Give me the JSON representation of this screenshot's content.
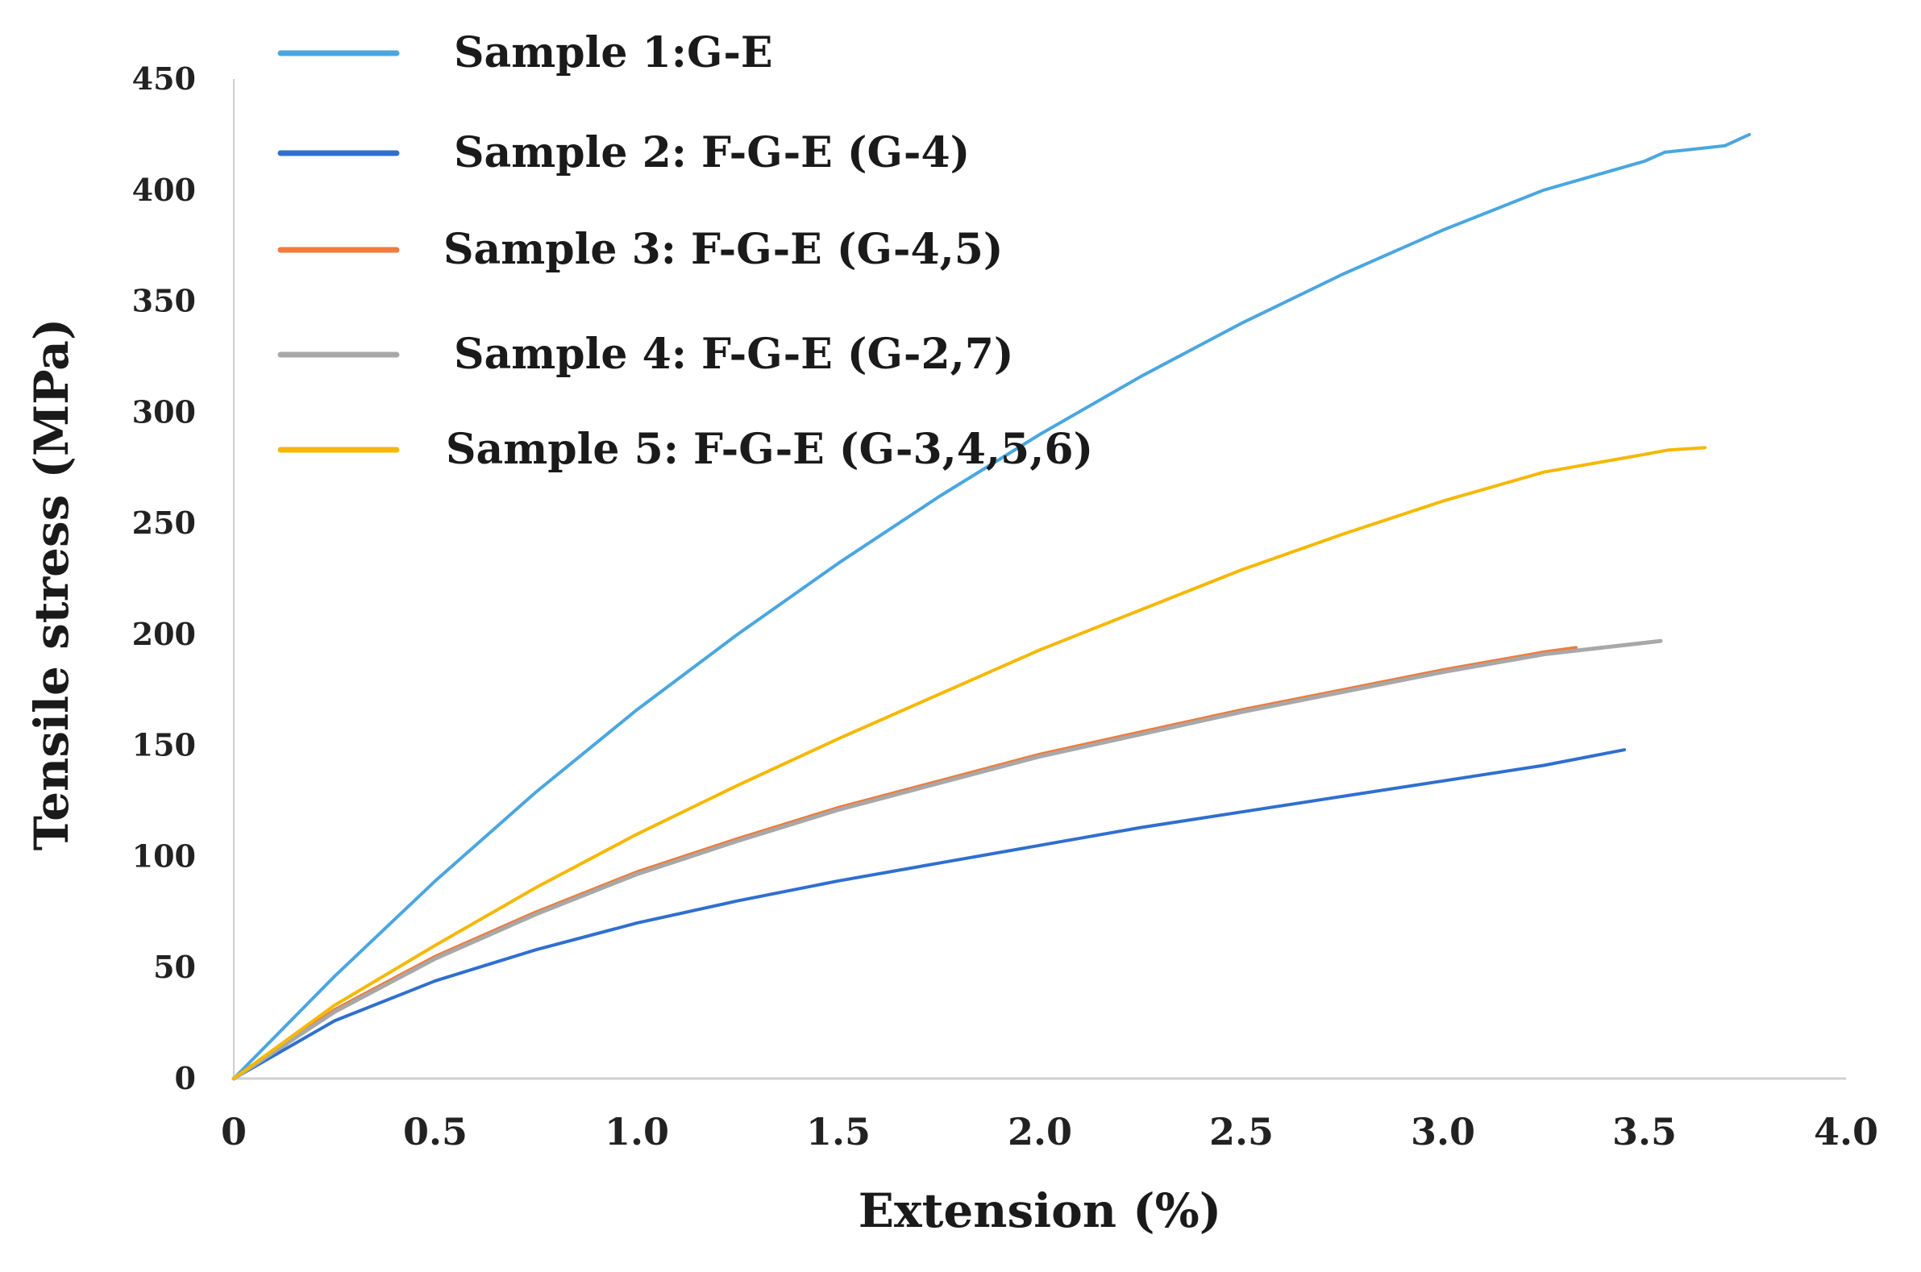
{
  "chart_data": {
    "type": "line",
    "title": "",
    "xlabel": "Extension (%)",
    "ylabel": "Tensile stress (MPa)",
    "xlim": [
      0,
      4.0
    ],
    "ylim": [
      0,
      450
    ],
    "x_ticks": [
      0,
      0.5,
      1.0,
      1.5,
      2.0,
      2.5,
      3.0,
      3.5,
      4.0
    ],
    "x_tick_labels": [
      "0",
      "0.5",
      "1.0",
      "1.5",
      "2.0",
      "2.5",
      "3.0",
      "3.5",
      "4.0"
    ],
    "y_ticks": [
      0,
      50,
      100,
      150,
      200,
      250,
      300,
      350,
      400,
      450
    ],
    "y_tick_labels": [
      "0",
      "50",
      "100",
      "150",
      "200",
      "250",
      "300",
      "350",
      "400",
      "450"
    ],
    "grid": false,
    "legend_position": "top-left",
    "series": [
      {
        "name": "Sample 1:G-E",
        "color": "#4aa6e0",
        "x": [
          0,
          0.25,
          0.5,
          0.75,
          1.0,
          1.25,
          1.5,
          1.75,
          2.0,
          2.25,
          2.5,
          2.75,
          3.0,
          3.25,
          3.5,
          3.55,
          3.6,
          3.7,
          3.76
        ],
        "y": [
          0,
          46,
          89,
          129,
          166,
          200,
          232,
          262,
          290,
          316,
          340,
          362,
          382,
          400,
          413,
          417,
          418,
          420,
          425
        ]
      },
      {
        "name": "Sample 2: F-G-E (G-4)",
        "color": "#2f6fcf",
        "x": [
          0,
          0.25,
          0.5,
          0.75,
          1.0,
          1.25,
          1.5,
          1.75,
          2.0,
          2.25,
          2.5,
          2.75,
          3.0,
          3.25,
          3.45
        ],
        "y": [
          0,
          26,
          44,
          58,
          70,
          80,
          89,
          97,
          105,
          113,
          120,
          127,
          134,
          141,
          148
        ]
      },
      {
        "name": "Sample 3: F-G-E (G-4,5)",
        "color": "#f07b3c",
        "x": [
          0,
          0.25,
          0.5,
          0.75,
          1.0,
          1.25,
          1.5,
          1.75,
          2.0,
          2.25,
          2.5,
          2.75,
          3.0,
          3.25,
          3.33
        ],
        "y": [
          0,
          31,
          55,
          75,
          93,
          108,
          122,
          134,
          146,
          156,
          166,
          175,
          184,
          192,
          194
        ]
      },
      {
        "name": "Sample 4: F-G-E (G-2,7)",
        "color": "#a8a8a8",
        "x": [
          0,
          0.25,
          0.5,
          0.75,
          1.0,
          1.25,
          1.5,
          1.75,
          2.0,
          2.25,
          2.5,
          2.75,
          3.0,
          3.25,
          3.54
        ],
        "y": [
          0,
          30,
          54,
          74,
          92,
          107,
          121,
          133,
          145,
          155,
          165,
          174,
          183,
          191,
          197
        ]
      },
      {
        "name": "Sample 5: F-G-E (G-3,4,5,6)",
        "color": "#f5b800",
        "x": [
          0,
          0.25,
          0.5,
          0.75,
          1.0,
          1.25,
          1.5,
          1.75,
          2.0,
          2.25,
          2.5,
          2.75,
          3.0,
          3.25,
          3.5,
          3.56,
          3.65
        ],
        "y": [
          0,
          33,
          60,
          86,
          110,
          132,
          153,
          173,
          193,
          211,
          229,
          245,
          260,
          273,
          281,
          283,
          284
        ]
      }
    ]
  }
}
